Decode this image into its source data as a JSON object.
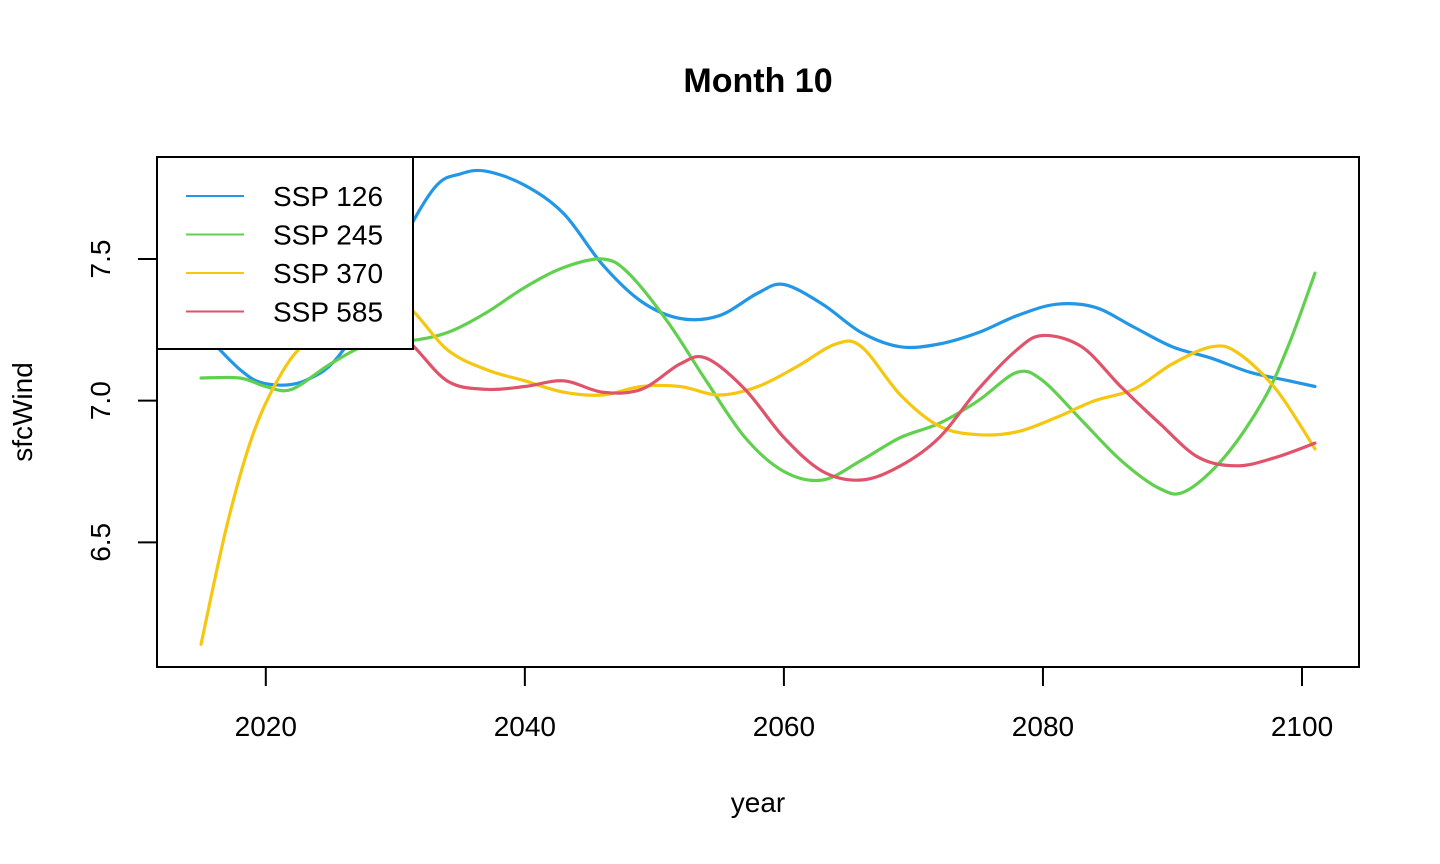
{
  "chart_data": {
    "type": "line",
    "title": "Month 10",
    "xlabel": "year",
    "ylabel": "sfcWind",
    "xlim": [
      2011.6,
      2104.4
    ],
    "ylim": [
      6.06,
      7.86
    ],
    "xticks": [
      2020,
      2040,
      2060,
      2080,
      2100
    ],
    "xtick_labels": [
      "2020",
      "2040",
      "2060",
      "2080",
      "2100"
    ],
    "yticks": [
      6.5,
      7.0,
      7.5
    ],
    "ytick_labels": [
      "6.5",
      "7.0",
      "7.5"
    ],
    "grid": false,
    "legend": {
      "position": "top-left",
      "boxed": true
    },
    "series": [
      {
        "name": "SSP 126",
        "color": "#2297E6",
        "points": [
          [
            2015,
            7.25
          ],
          [
            2018,
            7.11
          ],
          [
            2020,
            7.06
          ],
          [
            2023,
            7.07
          ],
          [
            2026,
            7.18
          ],
          [
            2030,
            7.52
          ],
          [
            2033,
            7.75
          ],
          [
            2035,
            7.8
          ],
          [
            2037,
            7.81
          ],
          [
            2040,
            7.76
          ],
          [
            2043,
            7.66
          ],
          [
            2046,
            7.48
          ],
          [
            2049,
            7.35
          ],
          [
            2052,
            7.29
          ],
          [
            2055,
            7.3
          ],
          [
            2058,
            7.38
          ],
          [
            2060,
            7.41
          ],
          [
            2063,
            7.34
          ],
          [
            2066,
            7.24
          ],
          [
            2069,
            7.19
          ],
          [
            2072,
            7.2
          ],
          [
            2075,
            7.24
          ],
          [
            2078,
            7.3
          ],
          [
            2081,
            7.34
          ],
          [
            2084,
            7.33
          ],
          [
            2087,
            7.26
          ],
          [
            2090,
            7.19
          ],
          [
            2093,
            7.15
          ],
          [
            2096,
            7.1
          ],
          [
            2099,
            7.07
          ],
          [
            2101,
            7.05
          ]
        ]
      },
      {
        "name": "SSP 245",
        "color": "#61D04F",
        "points": [
          [
            2015,
            7.08
          ],
          [
            2018,
            7.08
          ],
          [
            2020,
            7.05
          ],
          [
            2022,
            7.04
          ],
          [
            2025,
            7.13
          ],
          [
            2028,
            7.2
          ],
          [
            2031,
            7.21
          ],
          [
            2034,
            7.24
          ],
          [
            2037,
            7.31
          ],
          [
            2040,
            7.4
          ],
          [
            2043,
            7.47
          ],
          [
            2046,
            7.5
          ],
          [
            2048,
            7.45
          ],
          [
            2051,
            7.28
          ],
          [
            2054,
            7.07
          ],
          [
            2057,
            6.87
          ],
          [
            2060,
            6.75
          ],
          [
            2063,
            6.72
          ],
          [
            2066,
            6.79
          ],
          [
            2069,
            6.87
          ],
          [
            2072,
            6.92
          ],
          [
            2075,
            7.0
          ],
          [
            2078,
            7.1
          ],
          [
            2080,
            7.07
          ],
          [
            2083,
            6.93
          ],
          [
            2086,
            6.79
          ],
          [
            2089,
            6.69
          ],
          [
            2091,
            6.68
          ],
          [
            2094,
            6.8
          ],
          [
            2097,
            7.0
          ],
          [
            2099,
            7.2
          ],
          [
            2101,
            7.45
          ]
        ]
      },
      {
        "name": "SSP 370",
        "color": "#F5C710",
        "points": [
          [
            2015,
            6.14
          ],
          [
            2017,
            6.56
          ],
          [
            2019,
            6.88
          ],
          [
            2021,
            7.08
          ],
          [
            2023,
            7.2
          ],
          [
            2026,
            7.27
          ],
          [
            2029,
            7.33
          ],
          [
            2031,
            7.33
          ],
          [
            2034,
            7.18
          ],
          [
            2037,
            7.11
          ],
          [
            2040,
            7.07
          ],
          [
            2043,
            7.03
          ],
          [
            2046,
            7.02
          ],
          [
            2049,
            7.05
          ],
          [
            2052,
            7.05
          ],
          [
            2055,
            7.02
          ],
          [
            2058,
            7.05
          ],
          [
            2061,
            7.12
          ],
          [
            2064,
            7.2
          ],
          [
            2066,
            7.19
          ],
          [
            2069,
            7.02
          ],
          [
            2072,
            6.91
          ],
          [
            2075,
            6.88
          ],
          [
            2078,
            6.89
          ],
          [
            2081,
            6.94
          ],
          [
            2084,
            7.0
          ],
          [
            2087,
            7.04
          ],
          [
            2090,
            7.13
          ],
          [
            2093,
            7.19
          ],
          [
            2095,
            7.17
          ],
          [
            2098,
            7.04
          ],
          [
            2101,
            6.83
          ]
        ]
      },
      {
        "name": "SSP 585",
        "color": "#DF536B",
        "points": [
          [
            2028,
            7.3
          ],
          [
            2031,
            7.21
          ],
          [
            2034,
            7.07
          ],
          [
            2037,
            7.04
          ],
          [
            2040,
            7.05
          ],
          [
            2043,
            7.07
          ],
          [
            2046,
            7.03
          ],
          [
            2049,
            7.04
          ],
          [
            2052,
            7.13
          ],
          [
            2054,
            7.15
          ],
          [
            2057,
            7.04
          ],
          [
            2060,
            6.87
          ],
          [
            2063,
            6.75
          ],
          [
            2066,
            6.72
          ],
          [
            2069,
            6.77
          ],
          [
            2072,
            6.87
          ],
          [
            2075,
            7.04
          ],
          [
            2078,
            7.18
          ],
          [
            2080,
            7.23
          ],
          [
            2083,
            7.19
          ],
          [
            2086,
            7.05
          ],
          [
            2089,
            6.92
          ],
          [
            2092,
            6.8
          ],
          [
            2095,
            6.77
          ],
          [
            2098,
            6.8
          ],
          [
            2101,
            6.85
          ]
        ]
      }
    ]
  }
}
